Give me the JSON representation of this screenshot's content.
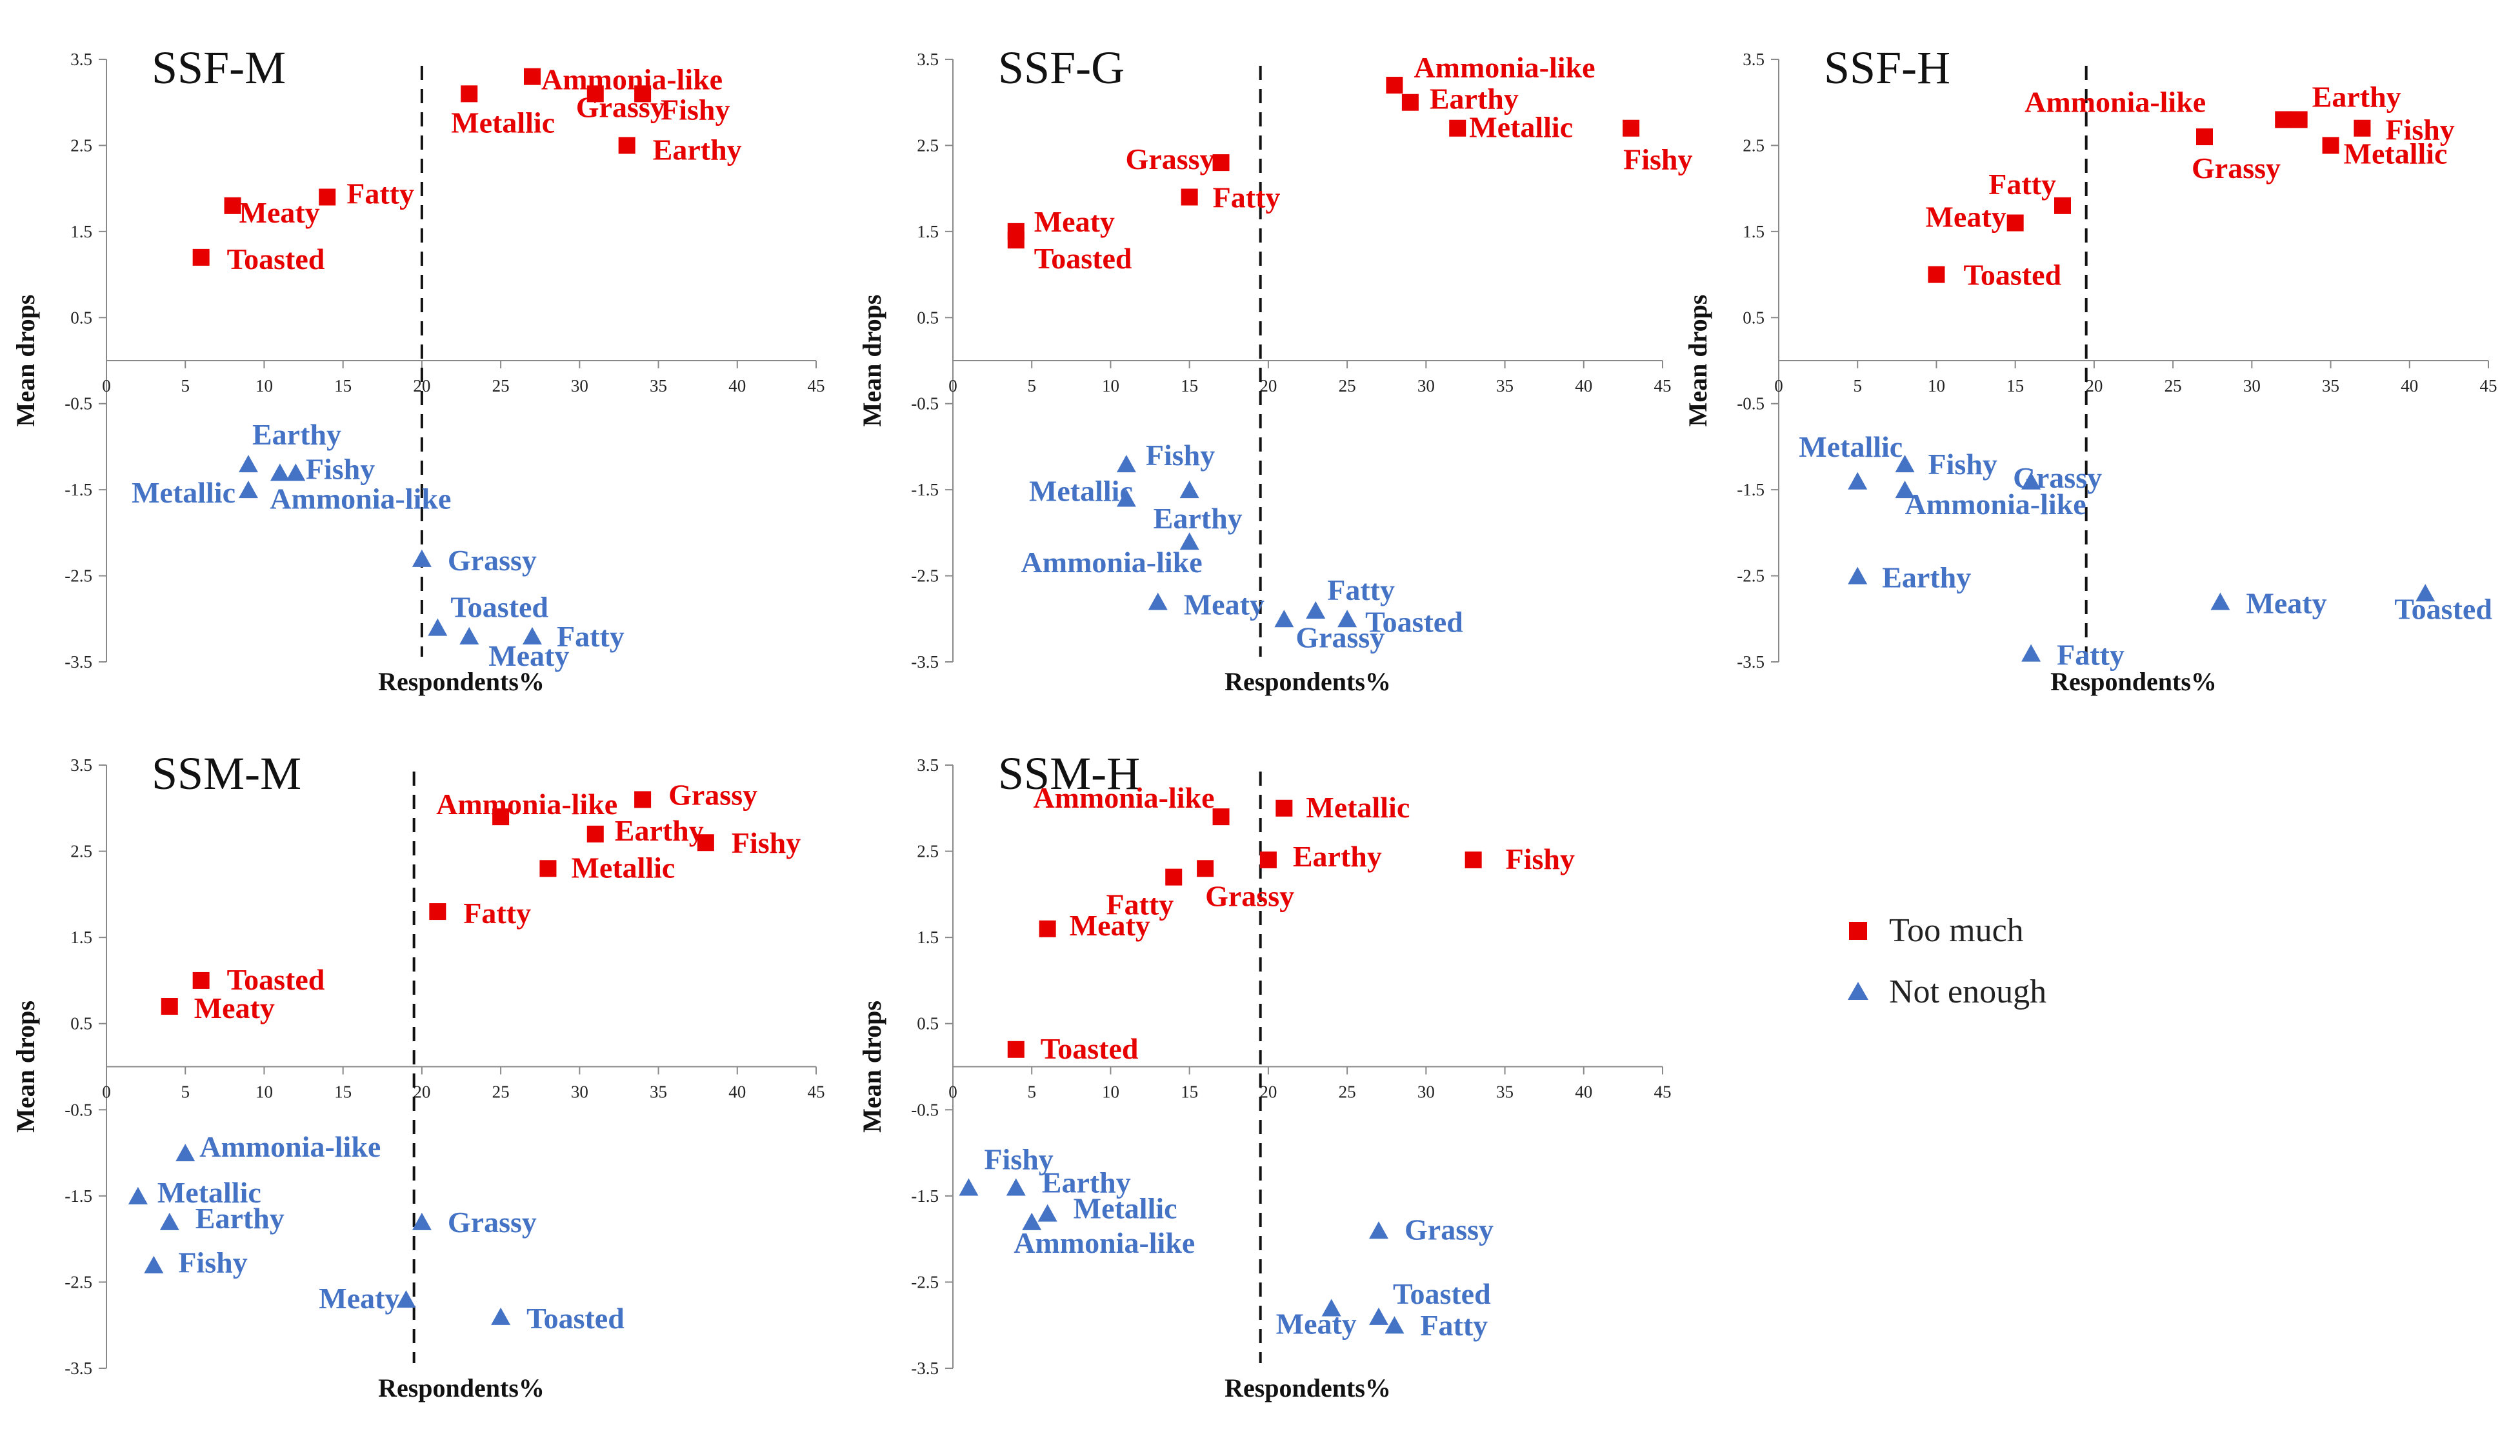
{
  "chart_data": [
    {
      "type": "scatter",
      "title": "SSF-M",
      "xlabel": "Respondents%",
      "ylabel": "Mean drops",
      "xlim": [
        0,
        45
      ],
      "ylim": [
        -3.5,
        3.5
      ],
      "xticks": [
        0,
        5,
        10,
        15,
        20,
        25,
        30,
        35,
        40,
        45
      ],
      "yticks": [
        3.5,
        2.5,
        1.5,
        0.5,
        -0.5,
        -1.5,
        -2.5,
        -3.5
      ],
      "threshold_x": 20,
      "series": [
        {
          "name": "Too much",
          "points": [
            {
              "label": "Ammonia-like",
              "x": 27,
              "y": 3.3
            },
            {
              "label": "Fishy",
              "x": 34,
              "y": 3.1
            },
            {
              "label": "Metallic",
              "x": 23,
              "y": 3.1
            },
            {
              "label": "Grassy",
              "x": 31,
              "y": 3.1
            },
            {
              "label": "Earthy",
              "x": 33,
              "y": 2.5
            },
            {
              "label": "Fatty",
              "x": 14,
              "y": 1.9
            },
            {
              "label": "Meaty",
              "x": 8,
              "y": 1.8
            },
            {
              "label": "Toasted",
              "x": 6,
              "y": 1.2
            }
          ]
        },
        {
          "name": "Not enough",
          "points": [
            {
              "label": "Earthy",
              "x": 9,
              "y": -1.2
            },
            {
              "label": "Fishy",
              "x": 11,
              "y": -1.3
            },
            {
              "label": "Metallic",
              "x": 9,
              "y": -1.5
            },
            {
              "label": "Ammonia-like",
              "x": 12,
              "y": -1.3
            },
            {
              "label": "Grassy",
              "x": 20,
              "y": -2.3
            },
            {
              "label": "Toasted",
              "x": 21,
              "y": -3.1
            },
            {
              "label": "Fatty",
              "x": 27,
              "y": -3.2
            },
            {
              "label": "Meaty",
              "x": 23,
              "y": -3.2
            }
          ]
        }
      ]
    },
    {
      "type": "scatter",
      "title": "SSF-G",
      "xlabel": "Respondents%",
      "ylabel": "Mean drops",
      "xlim": [
        0,
        45
      ],
      "ylim": [
        -3.5,
        3.5
      ],
      "xticks": [
        0,
        5,
        10,
        15,
        20,
        25,
        30,
        35,
        40,
        45
      ],
      "yticks": [
        3.5,
        2.5,
        1.5,
        0.5,
        -0.5,
        -1.5,
        -2.5,
        -3.5
      ],
      "threshold_x": 19.5,
      "series": [
        {
          "name": "Too much",
          "points": [
            {
              "label": "Ammonia-like",
              "x": 28,
              "y": 3.2
            },
            {
              "label": "Earthy",
              "x": 29,
              "y": 3.0
            },
            {
              "label": "Metallic",
              "x": 32,
              "y": 2.7
            },
            {
              "label": "Fishy",
              "x": 43,
              "y": 2.7
            },
            {
              "label": "Grassy",
              "x": 17,
              "y": 2.3
            },
            {
              "label": "Fatty",
              "x": 15,
              "y": 1.9
            },
            {
              "label": "Meaty",
              "x": 4,
              "y": 1.5
            },
            {
              "label": "Toasted",
              "x": 4,
              "y": 1.4
            }
          ]
        },
        {
          "name": "Not enough",
          "points": [
            {
              "label": "Fishy",
              "x": 11,
              "y": -1.2
            },
            {
              "label": "Metallic",
              "x": 11,
              "y": -1.6
            },
            {
              "label": "Earthy",
              "x": 15,
              "y": -1.5
            },
            {
              "label": "Ammonia-like",
              "x": 15,
              "y": -2.1
            },
            {
              "label": "Meaty",
              "x": 13,
              "y": -2.8
            },
            {
              "label": "Fatty",
              "x": 23,
              "y": -2.9
            },
            {
              "label": "Grassy",
              "x": 21,
              "y": -3.0
            },
            {
              "label": "Toasted",
              "x": 25,
              "y": -3.0
            }
          ]
        }
      ]
    },
    {
      "type": "scatter",
      "title": "SSF-H",
      "xlabel": "Respondents%",
      "ylabel": "Mean drops",
      "xlim": [
        0,
        45
      ],
      "ylim": [
        -3.5,
        3.5
      ],
      "xticks": [
        0,
        5,
        10,
        15,
        20,
        25,
        30,
        35,
        40,
        45
      ],
      "yticks": [
        3.5,
        2.5,
        1.5,
        0.5,
        -0.5,
        -1.5,
        -2.5,
        -3.5
      ],
      "threshold_x": 19.5,
      "series": [
        {
          "name": "Too much",
          "points": [
            {
              "label": "Ammonia-like",
              "x": 32,
              "y": 2.8
            },
            {
              "label": "Earthy",
              "x": 33,
              "y": 2.8
            },
            {
              "label": "Fishy",
              "x": 37,
              "y": 2.7
            },
            {
              "label": "Grassy",
              "x": 27,
              "y": 2.6
            },
            {
              "label": "Metallic",
              "x": 35,
              "y": 2.5
            },
            {
              "label": "Fatty",
              "x": 18,
              "y": 1.8
            },
            {
              "label": "Meaty",
              "x": 15,
              "y": 1.6
            },
            {
              "label": "Toasted",
              "x": 10,
              "y": 1.0
            }
          ]
        },
        {
          "name": "Not enough",
          "points": [
            {
              "label": "Metallic",
              "x": 5,
              "y": -1.4
            },
            {
              "label": "Fishy",
              "x": 8,
              "y": -1.2
            },
            {
              "label": "Grassy",
              "x": 16,
              "y": -1.4
            },
            {
              "label": "Ammonia-like",
              "x": 8,
              "y": -1.5
            },
            {
              "label": "Earthy",
              "x": 5,
              "y": -2.5
            },
            {
              "label": "Meaty",
              "x": 28,
              "y": -2.8
            },
            {
              "label": "Toasted",
              "x": 41,
              "y": -2.7
            },
            {
              "label": "Fatty",
              "x": 16,
              "y": -3.4
            }
          ]
        }
      ]
    },
    {
      "type": "scatter",
      "title": "SSM-M",
      "xlabel": "Respondents%",
      "ylabel": "Mean drops",
      "xlim": [
        0,
        45
      ],
      "ylim": [
        -3.5,
        3.5
      ],
      "xticks": [
        0,
        5,
        10,
        15,
        20,
        25,
        30,
        35,
        40,
        45
      ],
      "yticks": [
        3.5,
        2.5,
        1.5,
        0.5,
        -0.5,
        -1.5,
        -2.5,
        -3.5
      ],
      "threshold_x": 19.5,
      "series": [
        {
          "name": "Too much",
          "points": [
            {
              "label": "Grassy",
              "x": 34,
              "y": 3.1
            },
            {
              "label": "Ammonia-like",
              "x": 25,
              "y": 2.9
            },
            {
              "label": "Earthy",
              "x": 31,
              "y": 2.7
            },
            {
              "label": "Fishy",
              "x": 38,
              "y": 2.6
            },
            {
              "label": "Metallic",
              "x": 28,
              "y": 2.3
            },
            {
              "label": "Fatty",
              "x": 21,
              "y": 1.8
            },
            {
              "label": "Toasted",
              "x": 6,
              "y": 1.0
            },
            {
              "label": "Meaty",
              "x": 4,
              "y": 0.7
            }
          ]
        },
        {
          "name": "Not enough",
          "points": [
            {
              "label": "Ammonia-like",
              "x": 5,
              "y": -1.0
            },
            {
              "label": "Metallic",
              "x": 2,
              "y": -1.5
            },
            {
              "label": "Earthy",
              "x": 4,
              "y": -1.8
            },
            {
              "label": "Fishy",
              "x": 3,
              "y": -2.3
            },
            {
              "label": "Grassy",
              "x": 20,
              "y": -1.8
            },
            {
              "label": "Meaty",
              "x": 19,
              "y": -2.7
            },
            {
              "label": "Toasted",
              "x": 25,
              "y": -2.9
            }
          ]
        }
      ]
    },
    {
      "type": "scatter",
      "title": "SSM-H",
      "xlabel": "Respondents%",
      "ylabel": "Mean drops",
      "xlim": [
        0,
        45
      ],
      "ylim": [
        -3.5,
        3.5
      ],
      "xticks": [
        0,
        5,
        10,
        15,
        20,
        25,
        30,
        35,
        40,
        45
      ],
      "yticks": [
        3.5,
        2.5,
        1.5,
        0.5,
        -0.5,
        -1.5,
        -2.5,
        -3.5
      ],
      "threshold_x": 19.5,
      "series": [
        {
          "name": "Too much",
          "points": [
            {
              "label": "Metallic",
              "x": 21,
              "y": 3.0
            },
            {
              "label": "Ammonia-like",
              "x": 17,
              "y": 2.9
            },
            {
              "label": "Earthy",
              "x": 20,
              "y": 2.4
            },
            {
              "label": "Fishy",
              "x": 33,
              "y": 2.4
            },
            {
              "label": "Fatty",
              "x": 14,
              "y": 2.2
            },
            {
              "label": "Grassy",
              "x": 16,
              "y": 2.3
            },
            {
              "label": "Meaty",
              "x": 6,
              "y": 1.6
            },
            {
              "label": "Toasted",
              "x": 4,
              "y": 0.2
            }
          ]
        },
        {
          "name": "Not enough",
          "points": [
            {
              "label": "Fishy",
              "x": 1,
              "y": -1.4
            },
            {
              "label": "Earthy",
              "x": 4,
              "y": -1.4
            },
            {
              "label": "Metallic",
              "x": 6,
              "y": -1.7
            },
            {
              "label": "Ammonia-like",
              "x": 5,
              "y": -1.8
            },
            {
              "label": "Grassy",
              "x": 27,
              "y": -1.9
            },
            {
              "label": "Toasted",
              "x": 27,
              "y": -2.9
            },
            {
              "label": "Meaty",
              "x": 24,
              "y": -2.8
            },
            {
              "label": "Fatty",
              "x": 28,
              "y": -3.0
            }
          ]
        }
      ]
    }
  ],
  "legend": {
    "items": [
      {
        "label": "Too much",
        "color": "#e60000",
        "marker": "square"
      },
      {
        "label": "Not enough",
        "color": "#4472c4",
        "marker": "triangle"
      }
    ]
  },
  "colors": {
    "too_much": "#e60000",
    "not_enough": "#4472c4",
    "axis": "#888888",
    "text": "#111111"
  }
}
